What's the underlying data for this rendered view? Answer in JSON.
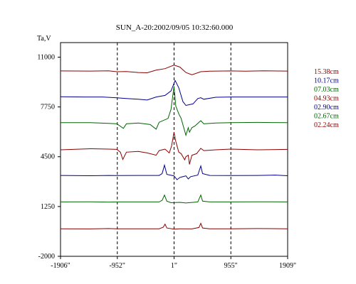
{
  "chart_data": {
    "type": "line",
    "title": "SUN_A-20:2002/09/05 10:32:60.000",
    "ylabel": "Ta,V",
    "xlabel": "",
    "x_range": [
      -1906,
      1909
    ],
    "ylim": [
      -2000,
      11950
    ],
    "x_ticks": [
      {
        "value": -1906,
        "label": "-1906\""
      },
      {
        "value": -952,
        "label": "-952\""
      },
      {
        "value": 1,
        "label": "1\""
      },
      {
        "value": 955,
        "label": "955\""
      },
      {
        "value": 1909,
        "label": "1909\""
      }
    ],
    "y_ticks": [
      {
        "value": 11000,
        "label": "11000"
      },
      {
        "value": 7750,
        "label": "7750"
      },
      {
        "value": 4500,
        "label": "4500"
      },
      {
        "value": 1250,
        "label": "1250"
      },
      {
        "value": -2000,
        "label": "-2000"
      }
    ],
    "vertical_guides": [
      -952,
      1,
      955
    ],
    "grid": false,
    "legend_position": "right",
    "series": [
      {
        "name": "15.38cm",
        "color": "#8b0000",
        "baseline": 10100,
        "points": [
          [
            -1906,
            10100
          ],
          [
            -1400,
            10090
          ],
          [
            -1100,
            10110
          ],
          [
            -960,
            10050
          ],
          [
            -800,
            10060
          ],
          [
            -600,
            10000
          ],
          [
            -450,
            9980
          ],
          [
            -300,
            10150
          ],
          [
            -150,
            10250
          ],
          [
            0,
            10480
          ],
          [
            100,
            10350
          ],
          [
            200,
            10000
          ],
          [
            300,
            9850
          ],
          [
            450,
            10050
          ],
          [
            600,
            10080
          ],
          [
            955,
            10100
          ],
          [
            1200,
            10080
          ],
          [
            1500,
            10110
          ],
          [
            1909,
            10090
          ]
        ]
      },
      {
        "name": "10.17cm",
        "color": "#00008b",
        "baseline": 8400,
        "points": [
          [
            -1906,
            8420
          ],
          [
            -1500,
            8400
          ],
          [
            -1200,
            8400
          ],
          [
            -960,
            8350
          ],
          [
            -800,
            8300
          ],
          [
            -600,
            8250
          ],
          [
            -450,
            8200
          ],
          [
            -300,
            8400
          ],
          [
            -150,
            8500
          ],
          [
            -50,
            8800
          ],
          [
            20,
            9480
          ],
          [
            80,
            9000
          ],
          [
            150,
            8100
          ],
          [
            200,
            7850
          ],
          [
            260,
            7900
          ],
          [
            320,
            7950
          ],
          [
            400,
            8300
          ],
          [
            450,
            8350
          ],
          [
            500,
            8250
          ],
          [
            700,
            8380
          ],
          [
            955,
            8400
          ],
          [
            1400,
            8400
          ],
          [
            1909,
            8400
          ]
        ]
      },
      {
        "name": "07.03cm",
        "color": "#006400",
        "baseline": 6720,
        "points": [
          [
            -1906,
            6720
          ],
          [
            -1400,
            6720
          ],
          [
            -1100,
            6680
          ],
          [
            -960,
            6650
          ],
          [
            -850,
            6350
          ],
          [
            -800,
            6650
          ],
          [
            -600,
            6700
          ],
          [
            -400,
            6600
          ],
          [
            -300,
            6300
          ],
          [
            -250,
            6750
          ],
          [
            -100,
            7000
          ],
          [
            -50,
            7600
          ],
          [
            0,
            9100
          ],
          [
            30,
            7800
          ],
          [
            80,
            7300
          ],
          [
            120,
            7000
          ],
          [
            200,
            5900
          ],
          [
            240,
            6400
          ],
          [
            260,
            6100
          ],
          [
            300,
            6400
          ],
          [
            350,
            6500
          ],
          [
            450,
            6850
          ],
          [
            500,
            6650
          ],
          [
            700,
            6700
          ],
          [
            955,
            6720
          ],
          [
            1400,
            6740
          ],
          [
            1909,
            6720
          ]
        ]
      },
      {
        "name": "04.93cm",
        "color": "#8b0000",
        "baseline": 5000,
        "points": [
          [
            -1906,
            4950
          ],
          [
            -1400,
            5020
          ],
          [
            -1100,
            5000
          ],
          [
            -960,
            4980
          ],
          [
            -900,
            4800
          ],
          [
            -860,
            4320
          ],
          [
            -800,
            4800
          ],
          [
            -600,
            4850
          ],
          [
            -450,
            4750
          ],
          [
            -300,
            4600
          ],
          [
            -250,
            4900
          ],
          [
            -150,
            5000
          ],
          [
            -80,
            4750
          ],
          [
            -40,
            5200
          ],
          [
            0,
            6100
          ],
          [
            30,
            5500
          ],
          [
            80,
            4800
          ],
          [
            120,
            4700
          ],
          [
            180,
            4300
          ],
          [
            200,
            4500
          ],
          [
            240,
            4600
          ],
          [
            260,
            4000
          ],
          [
            300,
            4600
          ],
          [
            380,
            4700
          ],
          [
            450,
            5050
          ],
          [
            500,
            4900
          ],
          [
            700,
            4950
          ],
          [
            955,
            5000
          ],
          [
            1400,
            4950
          ],
          [
            1909,
            4980
          ]
        ]
      },
      {
        "name": "02.90cm",
        "color": "#00008b",
        "baseline": 3270,
        "points": [
          [
            -1906,
            3280
          ],
          [
            -1400,
            3260
          ],
          [
            -1100,
            3280
          ],
          [
            -960,
            3270
          ],
          [
            -600,
            3280
          ],
          [
            -250,
            3280
          ],
          [
            -200,
            3400
          ],
          [
            -160,
            3950
          ],
          [
            -120,
            3350
          ],
          [
            0,
            3250
          ],
          [
            50,
            3000
          ],
          [
            100,
            3150
          ],
          [
            200,
            3250
          ],
          [
            240,
            3050
          ],
          [
            280,
            3200
          ],
          [
            400,
            3300
          ],
          [
            450,
            3900
          ],
          [
            480,
            3400
          ],
          [
            600,
            3280
          ],
          [
            955,
            3270
          ],
          [
            1400,
            3280
          ],
          [
            1700,
            3300
          ],
          [
            1909,
            3260
          ]
        ]
      },
      {
        "name": "02.67cm",
        "color": "#006400",
        "baseline": 1550,
        "points": [
          [
            -1906,
            1550
          ],
          [
            -1400,
            1560
          ],
          [
            -1100,
            1540
          ],
          [
            -960,
            1550
          ],
          [
            -600,
            1550
          ],
          [
            -250,
            1550
          ],
          [
            -200,
            1650
          ],
          [
            -160,
            2000
          ],
          [
            -120,
            1600
          ],
          [
            -50,
            1500
          ],
          [
            100,
            1520
          ],
          [
            200,
            1480
          ],
          [
            400,
            1550
          ],
          [
            450,
            2000
          ],
          [
            480,
            1600
          ],
          [
            600,
            1550
          ],
          [
            955,
            1550
          ],
          [
            1400,
            1560
          ],
          [
            1909,
            1550
          ]
        ]
      },
      {
        "name": "02.24cm",
        "color": "#8b0000",
        "baseline": -200,
        "points": [
          [
            -1906,
            -200
          ],
          [
            -1400,
            -210
          ],
          [
            -1100,
            -190
          ],
          [
            -960,
            -200
          ],
          [
            -600,
            -200
          ],
          [
            -250,
            -200
          ],
          [
            -180,
            -100
          ],
          [
            -150,
            100
          ],
          [
            -120,
            -150
          ],
          [
            0,
            -230
          ],
          [
            100,
            -200
          ],
          [
            300,
            -210
          ],
          [
            420,
            -120
          ],
          [
            450,
            150
          ],
          [
            480,
            -150
          ],
          [
            600,
            -200
          ],
          [
            955,
            -200
          ],
          [
            1400,
            -190
          ],
          [
            1909,
            -200
          ]
        ]
      }
    ]
  }
}
